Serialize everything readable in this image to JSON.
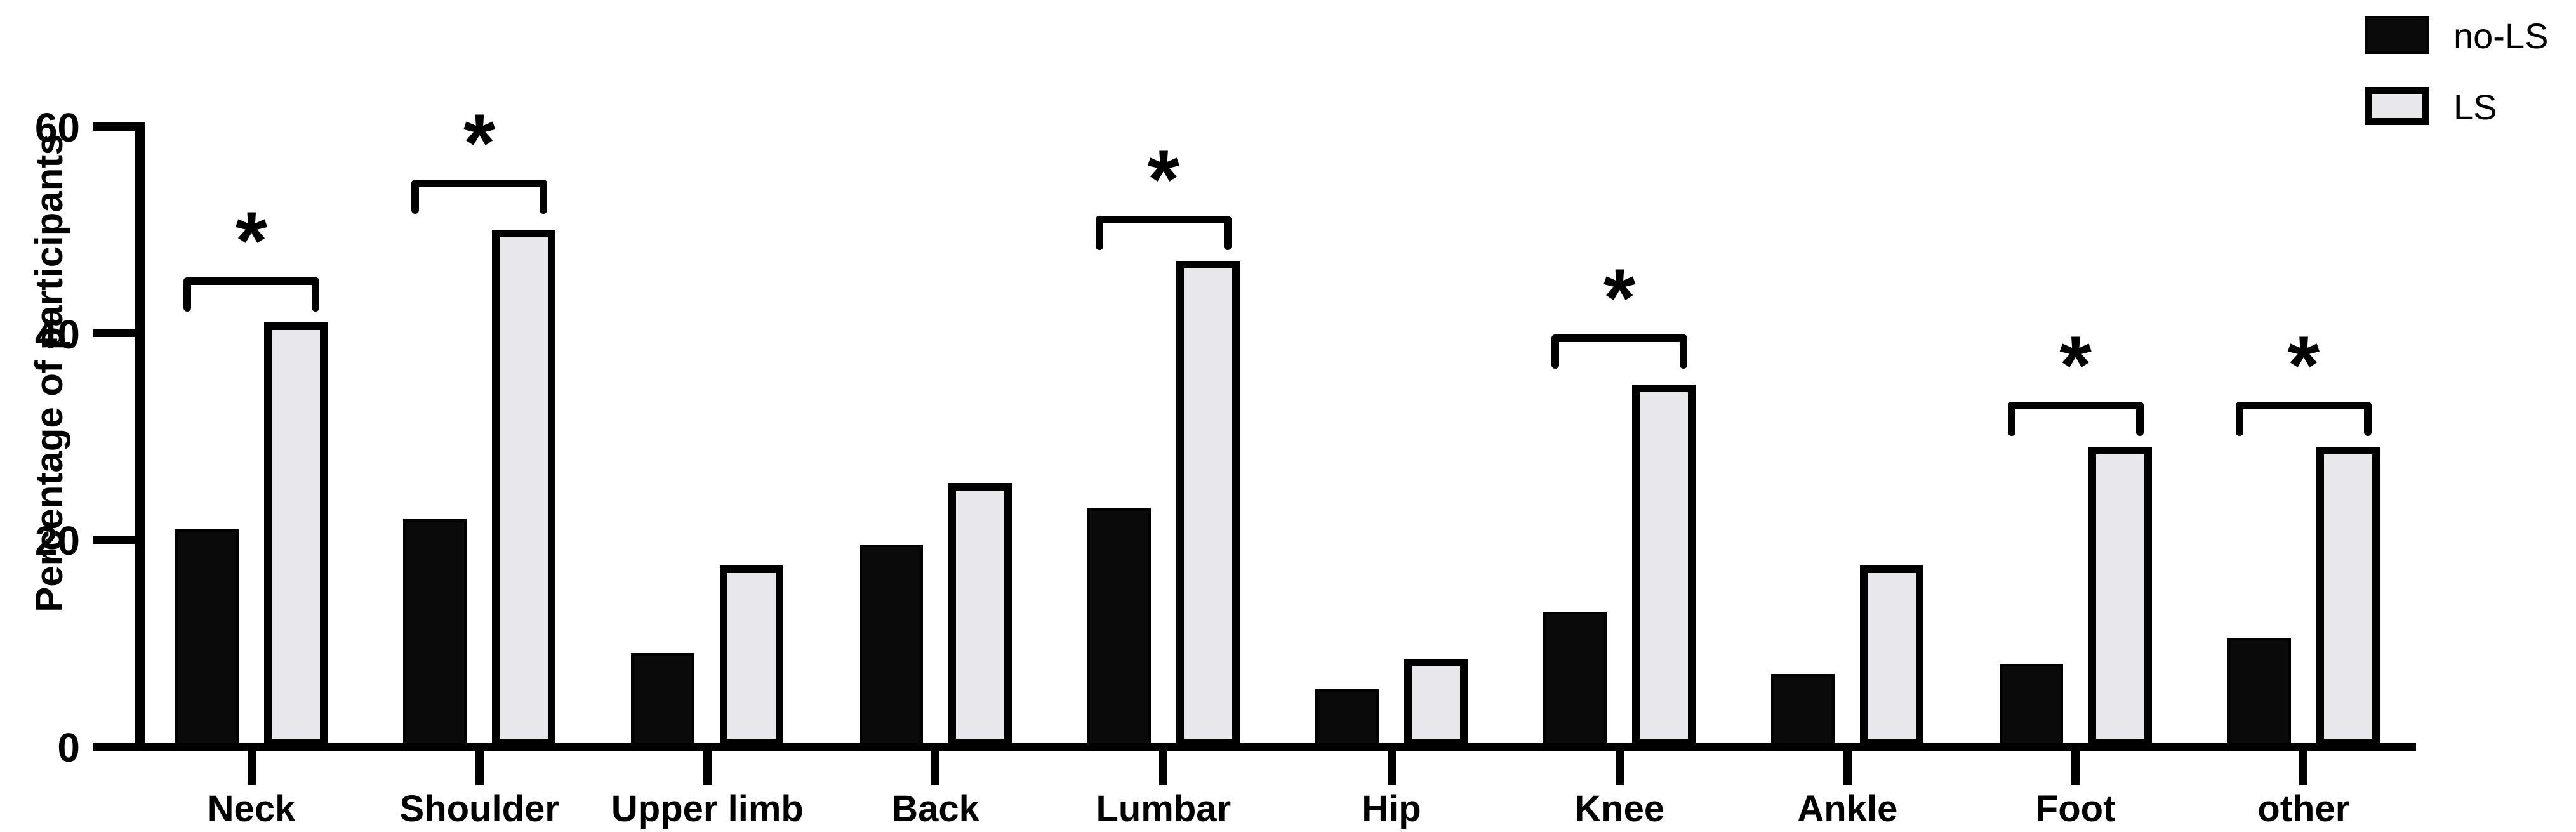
{
  "chart_data": {
    "type": "bar",
    "title": "",
    "ylabel": "Percentage of  participants",
    "xlabel": "",
    "ylim": [
      0,
      60
    ],
    "yticks": [
      0,
      20,
      40,
      60
    ],
    "grid": false,
    "legend_position": "top-right",
    "categories": [
      "Neck",
      "Shoulder",
      "Upper limb",
      "Back",
      "Lumbar",
      "Hip",
      "Knee",
      "Ankle",
      "Foot",
      "other"
    ],
    "series": [
      {
        "name": "no-LS",
        "fill": "#0a0a0a",
        "border": "#000000",
        "values": [
          21,
          22,
          9,
          19.5,
          23,
          5.5,
          13,
          7,
          8,
          10.5
        ]
      },
      {
        "name": "LS",
        "fill": "#e8e8ec",
        "border": "#000000",
        "values": [
          41,
          50,
          17.5,
          25.5,
          47,
          8.5,
          35,
          17.5,
          29,
          29
        ]
      }
    ],
    "significance_symbol": "*",
    "significance_brackets": [
      {
        "category": "Neck",
        "y": 45
      },
      {
        "category": "Shoulder",
        "y": 54.5
      },
      {
        "category": "Lumbar",
        "y": 51
      },
      {
        "category": "Knee",
        "y": 39.5
      },
      {
        "category": "Foot",
        "y": 33
      },
      {
        "category": "other",
        "y": 33
      }
    ],
    "colors": {
      "ink": "#000000",
      "ls_fill": "#e8e8ec",
      "background": "#ffffff"
    }
  }
}
